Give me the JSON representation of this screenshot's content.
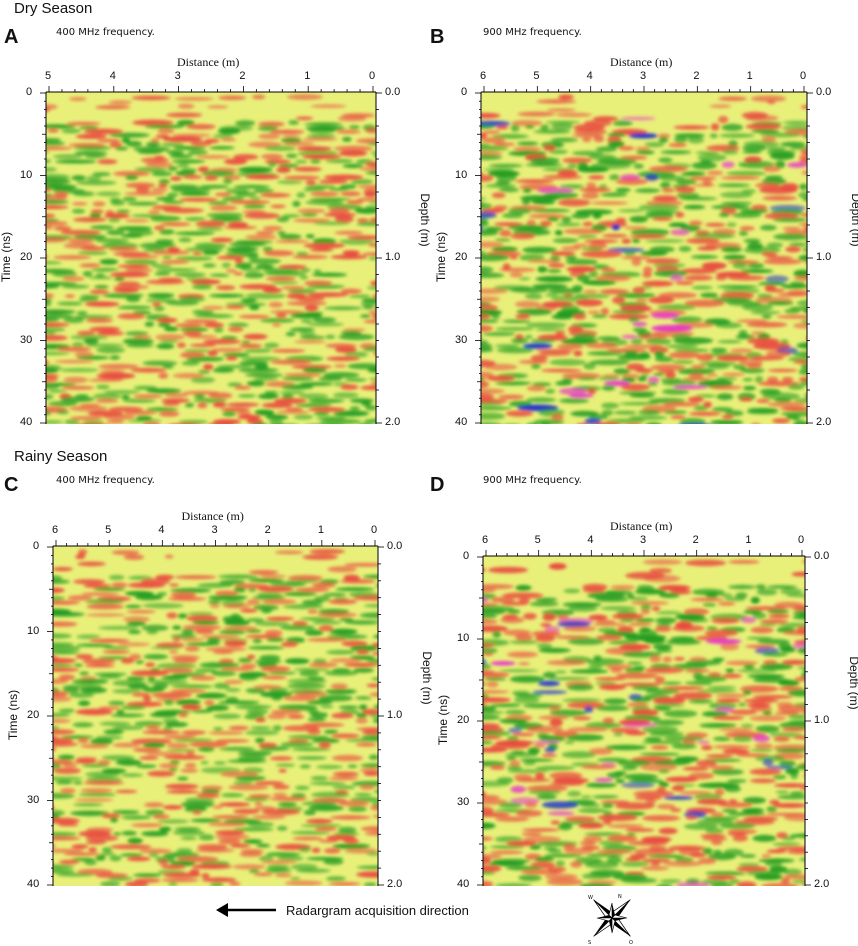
{
  "sections": {
    "dry": "Dry Season",
    "rainy": "Rainy Season"
  },
  "panels": [
    {
      "letter": "A",
      "frequency": "400 MHz frequency.",
      "distance_label": "Distance (m)",
      "time_label": "Time (ns)",
      "depth_label": "Depth (m)",
      "distance_ticks": [
        "5",
        "4",
        "3",
        "2",
        "1",
        "0"
      ],
      "time_ticks": [
        "0",
        "10",
        "20",
        "30",
        "40"
      ],
      "depth_ticks": [
        "0.0",
        "1.0",
        "2.0"
      ]
    },
    {
      "letter": "B",
      "frequency": "900 MHz frequency.",
      "distance_label": "Distance (m)",
      "time_label": "Time (ns)",
      "depth_label": "Depth (m)",
      "distance_ticks": [
        "6",
        "5",
        "4",
        "3",
        "2",
        "1",
        "0"
      ],
      "time_ticks": [
        "0",
        "10",
        "20",
        "30",
        "40"
      ],
      "depth_ticks": [
        "0.0",
        "1.0",
        "2.0"
      ]
    },
    {
      "letter": "C",
      "frequency": "400 MHz frequency.",
      "distance_label": "Distance (m)",
      "time_label": "Time (ns)",
      "depth_label": "Depth (m)",
      "distance_ticks": [
        "6",
        "5",
        "4",
        "3",
        "2",
        "1",
        "0"
      ],
      "time_ticks": [
        "0",
        "10",
        "20",
        "30",
        "40"
      ],
      "depth_ticks": [
        "0.0",
        "1.0",
        "2.0"
      ]
    },
    {
      "letter": "D",
      "frequency": "900 MHz frequency.",
      "distance_label": "Distance (m)",
      "time_label": "Time (ns)",
      "depth_label": "Depth (m)",
      "distance_ticks": [
        "6",
        "5",
        "4",
        "3",
        "2",
        "1",
        "0"
      ],
      "time_ticks": [
        "0",
        "10",
        "20",
        "30",
        "40"
      ],
      "depth_ticks": [
        "0.0",
        "1.0",
        "2.0"
      ]
    }
  ],
  "arrow_text": "Radargram acquisition direction",
  "compass": {
    "icon": "compass-rose-icon",
    "letters": [
      "N",
      "W",
      "S",
      "O"
    ]
  },
  "colors": {
    "background": "#e9f07a",
    "positive": "#e8453c",
    "negative": "#1f9a1f",
    "extreme_pos": "#e832c8",
    "extreme_neg": "#1c2fc8"
  }
}
